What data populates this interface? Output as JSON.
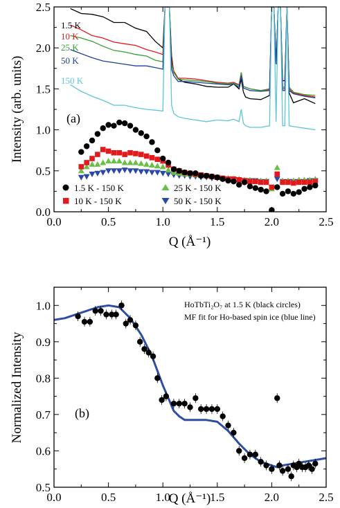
{
  "chart_data": [
    {
      "panel_label": "(a)",
      "type": "line",
      "xlabel": "Q (Å⁻¹)",
      "ylabel": "Intensity (arb. units)",
      "xlim": [
        0.0,
        2.5
      ],
      "ylim": [
        0.0,
        2.5
      ],
      "xticks": [
        "0.0",
        "0.5",
        "1.0",
        "1.5",
        "2.0",
        "2.5"
      ],
      "yticks": [
        "0.0",
        "0.5",
        "1.0",
        "1.5",
        "2.0",
        "2.5"
      ],
      "line_series": [
        {
          "name": "1.5 K",
          "color": "#000000",
          "x": [
            0.15,
            0.25,
            0.35,
            0.45,
            0.55,
            0.65,
            0.75,
            0.85,
            0.93,
            1.0,
            1.02,
            1.04,
            1.06,
            1.08,
            1.1,
            1.14,
            1.2,
            1.3,
            1.4,
            1.5,
            1.6,
            1.65,
            1.7,
            1.72,
            1.74,
            1.76,
            1.8,
            1.9,
            1.98,
            2.0,
            2.02,
            2.04,
            2.06,
            2.08,
            2.1,
            2.12,
            2.14,
            2.16,
            2.2,
            2.3,
            2.4
          ],
          "y": [
            2.48,
            2.42,
            2.41,
            2.38,
            2.31,
            2.31,
            2.24,
            2.2,
            2.08,
            2.0,
            2.5,
            2.5,
            2.5,
            1.9,
            1.7,
            1.62,
            1.58,
            1.56,
            1.53,
            1.52,
            1.52,
            1.56,
            1.5,
            1.62,
            1.46,
            1.4,
            1.38,
            1.37,
            1.42,
            2.5,
            2.5,
            1.8,
            2.5,
            2.5,
            1.6,
            1.6,
            2.5,
            1.45,
            1.33,
            1.38,
            1.32
          ]
        },
        {
          "name": "10 K",
          "color": "#e31a1c",
          "x": [
            0.15,
            0.25,
            0.35,
            0.45,
            0.55,
            0.65,
            0.75,
            0.85,
            0.93,
            1.0,
            1.02,
            1.04,
            1.06,
            1.08,
            1.1,
            1.14,
            1.2,
            1.3,
            1.4,
            1.5,
            1.6,
            1.65,
            1.7,
            1.72,
            1.74,
            1.76,
            1.8,
            1.9,
            1.98,
            2.0,
            2.02,
            2.04,
            2.06,
            2.08,
            2.1,
            2.12,
            2.14,
            2.16,
            2.2,
            2.3,
            2.4
          ],
          "y": [
            2.28,
            2.22,
            2.15,
            2.12,
            2.07,
            2.05,
            2.03,
            1.98,
            1.95,
            1.92,
            2.5,
            2.5,
            2.5,
            1.85,
            1.72,
            1.63,
            1.63,
            1.62,
            1.6,
            1.58,
            1.57,
            1.58,
            1.55,
            1.7,
            1.53,
            1.52,
            1.5,
            1.48,
            1.5,
            2.5,
            2.5,
            1.8,
            2.5,
            2.5,
            1.5,
            1.5,
            2.5,
            1.5,
            1.45,
            1.42,
            1.4
          ]
        },
        {
          "name": "25 K",
          "color": "#33a02c",
          "x": [
            0.15,
            0.25,
            0.35,
            0.45,
            0.55,
            0.65,
            0.75,
            0.85,
            0.93,
            1.0,
            1.02,
            1.04,
            1.06,
            1.08,
            1.1,
            1.14,
            1.2,
            1.3,
            1.4,
            1.5,
            1.6,
            1.65,
            1.7,
            1.72,
            1.74,
            1.76,
            1.8,
            1.9,
            1.98,
            2.0,
            2.02,
            2.04,
            2.06,
            2.08,
            2.1,
            2.12,
            2.14,
            2.16,
            2.2,
            2.3,
            2.4
          ],
          "y": [
            2.15,
            2.12,
            2.08,
            2.02,
            1.97,
            1.95,
            1.92,
            1.9,
            1.85,
            1.83,
            2.5,
            2.5,
            2.5,
            1.8,
            1.7,
            1.62,
            1.61,
            1.6,
            1.59,
            1.57,
            1.56,
            1.57,
            1.54,
            1.7,
            1.53,
            1.52,
            1.5,
            1.48,
            1.49,
            2.5,
            2.5,
            1.8,
            2.5,
            2.5,
            1.52,
            1.52,
            2.5,
            1.52,
            1.46,
            1.43,
            1.42
          ]
        },
        {
          "name": "50 K",
          "color": "#1f3e9c",
          "x": [
            0.15,
            0.25,
            0.35,
            0.45,
            0.55,
            0.65,
            0.75,
            0.85,
            0.93,
            1.0,
            1.02,
            1.04,
            1.06,
            1.08,
            1.1,
            1.14,
            1.2,
            1.3,
            1.4,
            1.5,
            1.6,
            1.65,
            1.7,
            1.72,
            1.74,
            1.76,
            1.8,
            1.9,
            1.98,
            2.0,
            2.02,
            2.04,
            2.06,
            2.08,
            2.1,
            2.12,
            2.14,
            2.16,
            2.2,
            2.3,
            2.4
          ],
          "y": [
            1.98,
            1.93,
            1.88,
            1.84,
            1.82,
            1.8,
            1.78,
            1.78,
            1.76,
            1.74,
            2.5,
            2.5,
            2.5,
            1.74,
            1.66,
            1.59,
            1.59,
            1.58,
            1.57,
            1.56,
            1.55,
            1.56,
            1.52,
            1.66,
            1.51,
            1.5,
            1.48,
            1.47,
            1.48,
            2.5,
            2.5,
            1.8,
            2.5,
            2.5,
            1.48,
            1.48,
            2.5,
            1.48,
            1.44,
            1.41,
            1.39
          ]
        },
        {
          "name": "150 K",
          "color": "#5bc6d9",
          "x": [
            0.15,
            0.25,
            0.35,
            0.45,
            0.55,
            0.65,
            0.75,
            0.85,
            0.93,
            1.0,
            1.02,
            1.04,
            1.06,
            1.08,
            1.1,
            1.14,
            1.2,
            1.3,
            1.4,
            1.5,
            1.6,
            1.65,
            1.7,
            1.72,
            1.74,
            1.76,
            1.8,
            1.9,
            1.98,
            2.0,
            2.02,
            2.04,
            2.06,
            2.08,
            2.1,
            2.12,
            2.14,
            2.16,
            2.2,
            2.3,
            2.4
          ],
          "y": [
            1.55,
            1.47,
            1.41,
            1.36,
            1.3,
            1.3,
            1.27,
            1.25,
            1.24,
            1.23,
            2.5,
            2.5,
            2.5,
            1.3,
            1.2,
            1.16,
            1.14,
            1.12,
            1.1,
            1.12,
            1.11,
            1.13,
            1.1,
            1.25,
            1.08,
            1.05,
            1.03,
            1.03,
            1.05,
            2.5,
            2.5,
            1.1,
            2.5,
            2.5,
            1.05,
            1.05,
            2.5,
            1.05,
            1.04,
            1.02,
            1.0
          ]
        }
      ],
      "marker_series": [
        {
          "name": "1.5 K - 150 K",
          "color": "#000000",
          "marker": "circle",
          "x": [
            0.25,
            0.3,
            0.35,
            0.4,
            0.45,
            0.5,
            0.55,
            0.6,
            0.65,
            0.7,
            0.75,
            0.8,
            0.85,
            0.9,
            0.95,
            1.0,
            1.05,
            1.1,
            1.15,
            1.2,
            1.25,
            1.3,
            1.35,
            1.4,
            1.45,
            1.5,
            1.55,
            1.6,
            1.65,
            1.7,
            1.75,
            1.8,
            1.85,
            1.9,
            1.95,
            2.0,
            2.05,
            2.1,
            2.15,
            2.2,
            2.25,
            2.3,
            2.35,
            2.4
          ],
          "y": [
            0.73,
            0.8,
            0.87,
            0.95,
            1.02,
            1.06,
            1.05,
            1.09,
            1.08,
            1.05,
            1.0,
            0.96,
            0.92,
            0.85,
            0.75,
            0.65,
            0.6,
            0.52,
            0.5,
            0.48,
            0.47,
            0.47,
            0.44,
            0.44,
            0.43,
            0.42,
            0.4,
            0.38,
            0.37,
            0.33,
            0.36,
            0.31,
            0.29,
            0.27,
            0.25,
            0.02,
            0.3,
            0.22,
            0.25,
            0.22,
            0.24,
            0.28,
            0.3,
            0.32
          ]
        },
        {
          "name": "10 K - 150 K",
          "color": "#e31a1c",
          "marker": "square",
          "x": [
            0.25,
            0.3,
            0.35,
            0.4,
            0.45,
            0.5,
            0.55,
            0.6,
            0.65,
            0.7,
            0.75,
            0.8,
            0.85,
            0.9,
            0.95,
            1.0,
            1.05,
            1.1,
            1.15,
            1.2,
            1.25,
            1.3,
            1.35,
            1.4,
            1.45,
            1.5,
            1.55,
            1.6,
            1.65,
            1.7,
            1.75,
            1.8,
            1.85,
            1.9,
            1.95,
            2.0,
            2.05,
            2.1,
            2.15,
            2.2,
            2.25,
            2.3,
            2.35,
            2.4
          ],
          "y": [
            0.55,
            0.6,
            0.65,
            0.7,
            0.76,
            0.74,
            0.72,
            0.72,
            0.7,
            0.72,
            0.71,
            0.7,
            0.68,
            0.66,
            0.64,
            0.62,
            0.57,
            0.52,
            0.5,
            0.48,
            0.47,
            0.46,
            0.45,
            0.44,
            0.43,
            0.42,
            0.41,
            0.4,
            0.4,
            0.39,
            0.38,
            0.37,
            0.37,
            0.36,
            0.36,
            0.3,
            0.46,
            0.36,
            0.36,
            0.35,
            0.36,
            0.36,
            0.36,
            0.37
          ]
        },
        {
          "name": "25 K - 150 K",
          "color": "#6abf45",
          "marker": "triangle-up",
          "x": [
            0.25,
            0.3,
            0.35,
            0.4,
            0.45,
            0.5,
            0.55,
            0.6,
            0.65,
            0.7,
            0.75,
            0.8,
            0.85,
            0.9,
            0.95,
            1.0,
            1.05,
            1.1,
            1.15,
            1.2,
            1.25,
            1.3,
            1.35,
            1.4,
            1.45,
            1.5,
            1.55,
            1.6,
            1.65,
            1.7,
            1.75,
            1.8,
            1.85,
            1.9,
            1.95,
            2.0,
            2.05,
            2.1,
            2.15,
            2.2,
            2.25,
            2.3,
            2.35,
            2.4
          ],
          "y": [
            0.5,
            0.55,
            0.58,
            0.58,
            0.6,
            0.62,
            0.62,
            0.62,
            0.6,
            0.6,
            0.6,
            0.59,
            0.58,
            0.57,
            0.56,
            0.55,
            0.51,
            0.48,
            0.47,
            0.46,
            0.46,
            0.45,
            0.44,
            0.44,
            0.43,
            0.42,
            0.41,
            0.41,
            0.4,
            0.4,
            0.39,
            0.39,
            0.38,
            0.38,
            0.38,
            0.28,
            0.54,
            0.38,
            0.38,
            0.38,
            0.39,
            0.39,
            0.39,
            0.4
          ]
        },
        {
          "name": "50 K - 150 K",
          "color": "#2b4aa8",
          "marker": "triangle-down",
          "x": [
            0.25,
            0.3,
            0.35,
            0.4,
            0.45,
            0.5,
            0.55,
            0.6,
            0.65,
            0.7,
            0.75,
            0.8,
            0.85,
            0.9,
            0.95,
            1.0,
            1.05,
            1.1,
            1.15,
            1.2,
            1.25,
            1.3,
            1.35,
            1.4,
            1.45,
            1.5,
            1.55,
            1.6,
            1.65,
            1.7,
            1.75,
            1.8,
            1.85,
            1.9,
            1.95,
            2.0,
            2.05,
            2.1,
            2.15,
            2.2,
            2.25,
            2.3,
            2.35,
            2.4
          ],
          "y": [
            0.42,
            0.43,
            0.46,
            0.47,
            0.48,
            0.5,
            0.5,
            0.5,
            0.51,
            0.5,
            0.5,
            0.49,
            0.49,
            0.48,
            0.48,
            0.47,
            0.46,
            0.45,
            0.44,
            0.44,
            0.43,
            0.43,
            0.42,
            0.42,
            0.41,
            0.41,
            0.4,
            0.4,
            0.39,
            0.39,
            0.38,
            0.38,
            0.38,
            0.37,
            0.37,
            0.3,
            0.4,
            0.37,
            0.37,
            0.37,
            0.37,
            0.37,
            0.38,
            0.38
          ]
        }
      ]
    },
    {
      "panel_label": "(b)",
      "type": "scatter",
      "xlabel": "Q (Å⁻¹)",
      "ylabel": "Normalized Intensity",
      "xlim": [
        0.0,
        2.5
      ],
      "ylim": [
        0.5,
        1.05
      ],
      "xticks": [
        "0.0",
        "0.5",
        "1.0",
        "1.5",
        "2.0",
        "2.5"
      ],
      "yticks": [
        "0.5",
        "0.6",
        "0.7",
        "0.8",
        "0.9",
        "1.0"
      ],
      "annotation_line1": "HoTbTi₂O₇ at 1.5 K (black circles)",
      "annotation_line2": "MF fit for Ho-based spin ice (blue line)",
      "series": [
        {
          "name": "HoTbTi₂O₇ at 1.5 K",
          "color": "#000000",
          "marker": "circle",
          "x": [
            0.22,
            0.28,
            0.33,
            0.38,
            0.43,
            0.48,
            0.53,
            0.57,
            0.62,
            0.66,
            0.7,
            0.75,
            0.79,
            0.83,
            0.87,
            0.91,
            0.95,
            0.99,
            1.03,
            1.1,
            1.15,
            1.2,
            1.25,
            1.3,
            1.35,
            1.4,
            1.45,
            1.5,
            1.55,
            1.6,
            1.65,
            1.7,
            1.75,
            1.8,
            1.85,
            1.9,
            1.95,
            2.0,
            2.05,
            2.07,
            2.1,
            2.15,
            2.18,
            2.2,
            2.23,
            2.25,
            2.28,
            2.31,
            2.34,
            2.37,
            2.4
          ],
          "y": [
            0.97,
            0.955,
            0.955,
            0.985,
            0.985,
            0.975,
            0.975,
            0.975,
            1.0,
            0.95,
            0.96,
            0.945,
            0.9,
            0.88,
            0.87,
            0.86,
            0.8,
            0.74,
            0.75,
            0.73,
            0.73,
            0.73,
            0.72,
            0.745,
            0.715,
            0.715,
            0.715,
            0.715,
            0.695,
            0.67,
            0.65,
            0.6,
            0.58,
            0.59,
            0.59,
            0.57,
            0.56,
            0.55,
            0.745,
            0.56,
            0.545,
            0.55,
            0.53,
            0.56,
            0.555,
            0.565,
            0.555,
            0.555,
            0.56,
            0.55,
            0.565
          ]
        },
        {
          "name": "MF fit for Ho-based spin ice",
          "color": "#2e4ea3",
          "marker": "line",
          "x": [
            0.0,
            0.1,
            0.2,
            0.3,
            0.4,
            0.5,
            0.6,
            0.7,
            0.8,
            0.9,
            1.0,
            1.05,
            1.1,
            1.15,
            1.2,
            1.3,
            1.4,
            1.5,
            1.6,
            1.7,
            1.8,
            1.9,
            2.0,
            2.05,
            2.1,
            2.2,
            2.3,
            2.4,
            2.5
          ],
          "y": [
            0.96,
            0.965,
            0.975,
            0.985,
            0.995,
            1.0,
            0.995,
            0.965,
            0.92,
            0.86,
            0.78,
            0.745,
            0.71,
            0.695,
            0.685,
            0.685,
            0.685,
            0.68,
            0.655,
            0.62,
            0.59,
            0.57,
            0.56,
            0.555,
            0.56,
            0.565,
            0.57,
            0.575,
            0.58
          ]
        }
      ]
    }
  ]
}
